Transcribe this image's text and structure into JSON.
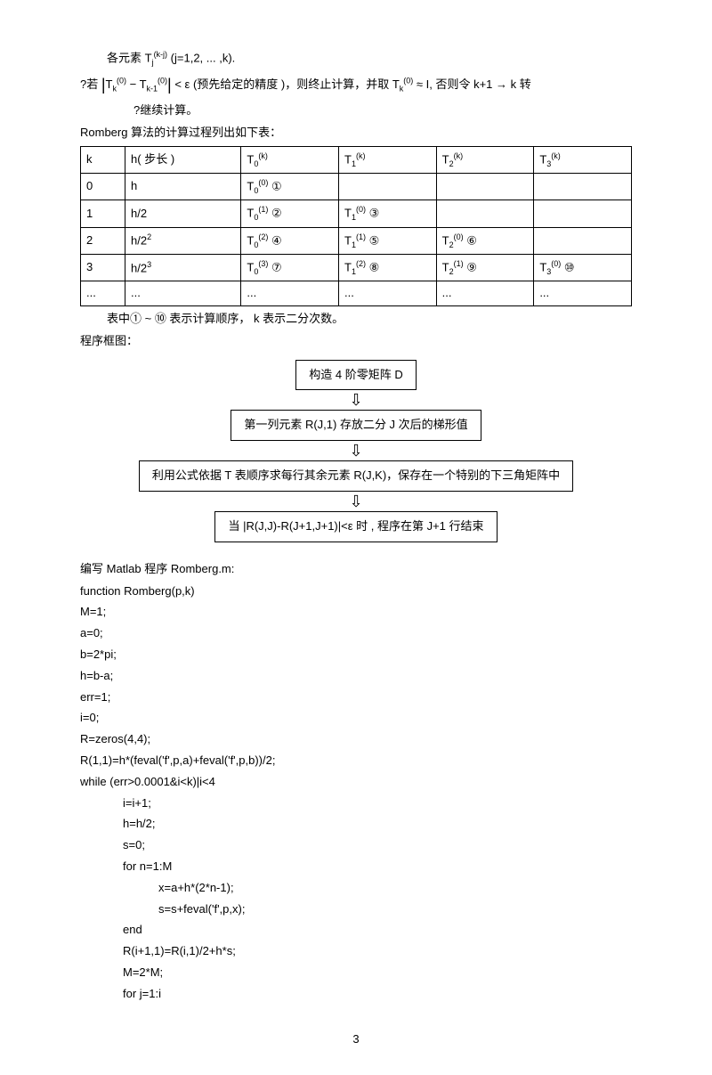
{
  "intro": {
    "line1": "各元素   T<sub>j</sub><sup>(k-j)</sup> (j=1,2, ... ,k).",
    "line2": "?若   <span class='abs'>|</span>T<sub>k</sub><sup>(0)</sup> − T<sub>k-1</sub><sup>(0)</sup><span class='abs'>|</span> < ε (预先给定的精度   )，则终止计算，并取   T<sub>k</sub><sup>(0)</sup> ≈ I, 否则令   k+1 → k 转",
    "line3": "?继续计算。",
    "line4": "Romberg 算法的计算过程列出如下表："
  },
  "table": {
    "headers": [
      "k",
      "h( 步长 )",
      "T<sub>0</sub><sup>(k)</sup>",
      "T<sub>1</sub><sup>(k)</sup>",
      "T<sub>2</sub><sup>(k)</sup>",
      "T<sub>3</sub><sup>(k)</sup>"
    ],
    "rows": [
      [
        "0",
        "h",
        "T<sub>0</sub><sup>(0)</sup> ①",
        "",
        "",
        ""
      ],
      [
        "1",
        "h/2",
        "T<sub>0</sub><sup>(1)</sup> ②",
        "T<sub>1</sub><sup>(0)</sup> ③",
        "",
        ""
      ],
      [
        "2",
        "h/2<sup>2</sup>",
        "T<sub>0</sub><sup>(2)</sup> ④",
        "T<sub>1</sub><sup>(1)</sup> ⑤",
        "T<sub>2</sub><sup>(0)</sup> ⑥",
        ""
      ],
      [
        "3",
        "h/2<sup>3</sup>",
        "T<sub>0</sub><sup>(3)</sup> ⑦",
        "T<sub>1</sub><sup>(2)</sup> ⑧",
        "T<sub>2</sub><sup>(1)</sup> ⑨",
        "T<sub>3</sub><sup>(0)</sup> ⑩"
      ],
      [
        "...",
        "...",
        "...",
        "...",
        "...",
        "..."
      ]
    ],
    "note": "表中① ~ ⑩ 表示计算顺序，   k 表示二分次数。",
    "progtitle": "程序框图："
  },
  "flow": {
    "box1": "构造   4 阶零矩阵   D",
    "box2": "第一列元素   R(J,1) 存放二分   J 次后的梯形值",
    "box3": "利用公式依据   T 表顺序求每行其余元素    R(J,K)，保存在一个特别的下三角矩阵中",
    "box4": "当 |R(J,J)-R(J+1,J+1)|<ε   时 , 程序在第   J+1 行结束"
  },
  "code": {
    "title": "编写  Matlab 程序  Romberg.m:",
    "lines": [
      {
        "t": "function Romberg(p,k)",
        "i": 0
      },
      {
        "t": "M=1;",
        "i": 0
      },
      {
        "t": "a=0;",
        "i": 0
      },
      {
        "t": "b=2*pi;",
        "i": 0
      },
      {
        "t": "h=b-a;",
        "i": 0
      },
      {
        "t": "err=1;",
        "i": 0
      },
      {
        "t": "i=0;",
        "i": 0
      },
      {
        "t": "R=zeros(4,4);",
        "i": 0
      },
      {
        "t": "R(1,1)=h*(feval('f',p,a)+feval('f',p,b))/2;",
        "i": 0
      },
      {
        "t": "while (err>0.0001&i<k)|i<4",
        "i": 0
      },
      {
        "t": "i=i+1;",
        "i": 1
      },
      {
        "t": "h=h/2;",
        "i": 1
      },
      {
        "t": "s=0;",
        "i": 1
      },
      {
        "t": "for n=1:M",
        "i": 1
      },
      {
        "t": "x=a+h*(2*n-1);",
        "i": 2
      },
      {
        "t": "s=s+feval('f',p,x);",
        "i": 2
      },
      {
        "t": "end",
        "i": 1
      },
      {
        "t": "R(i+1,1)=R(i,1)/2+h*s;",
        "i": 1
      },
      {
        "t": "M=2*M;",
        "i": 1
      },
      {
        "t": "for j=1:i",
        "i": 1
      }
    ]
  },
  "pagenum": "3"
}
